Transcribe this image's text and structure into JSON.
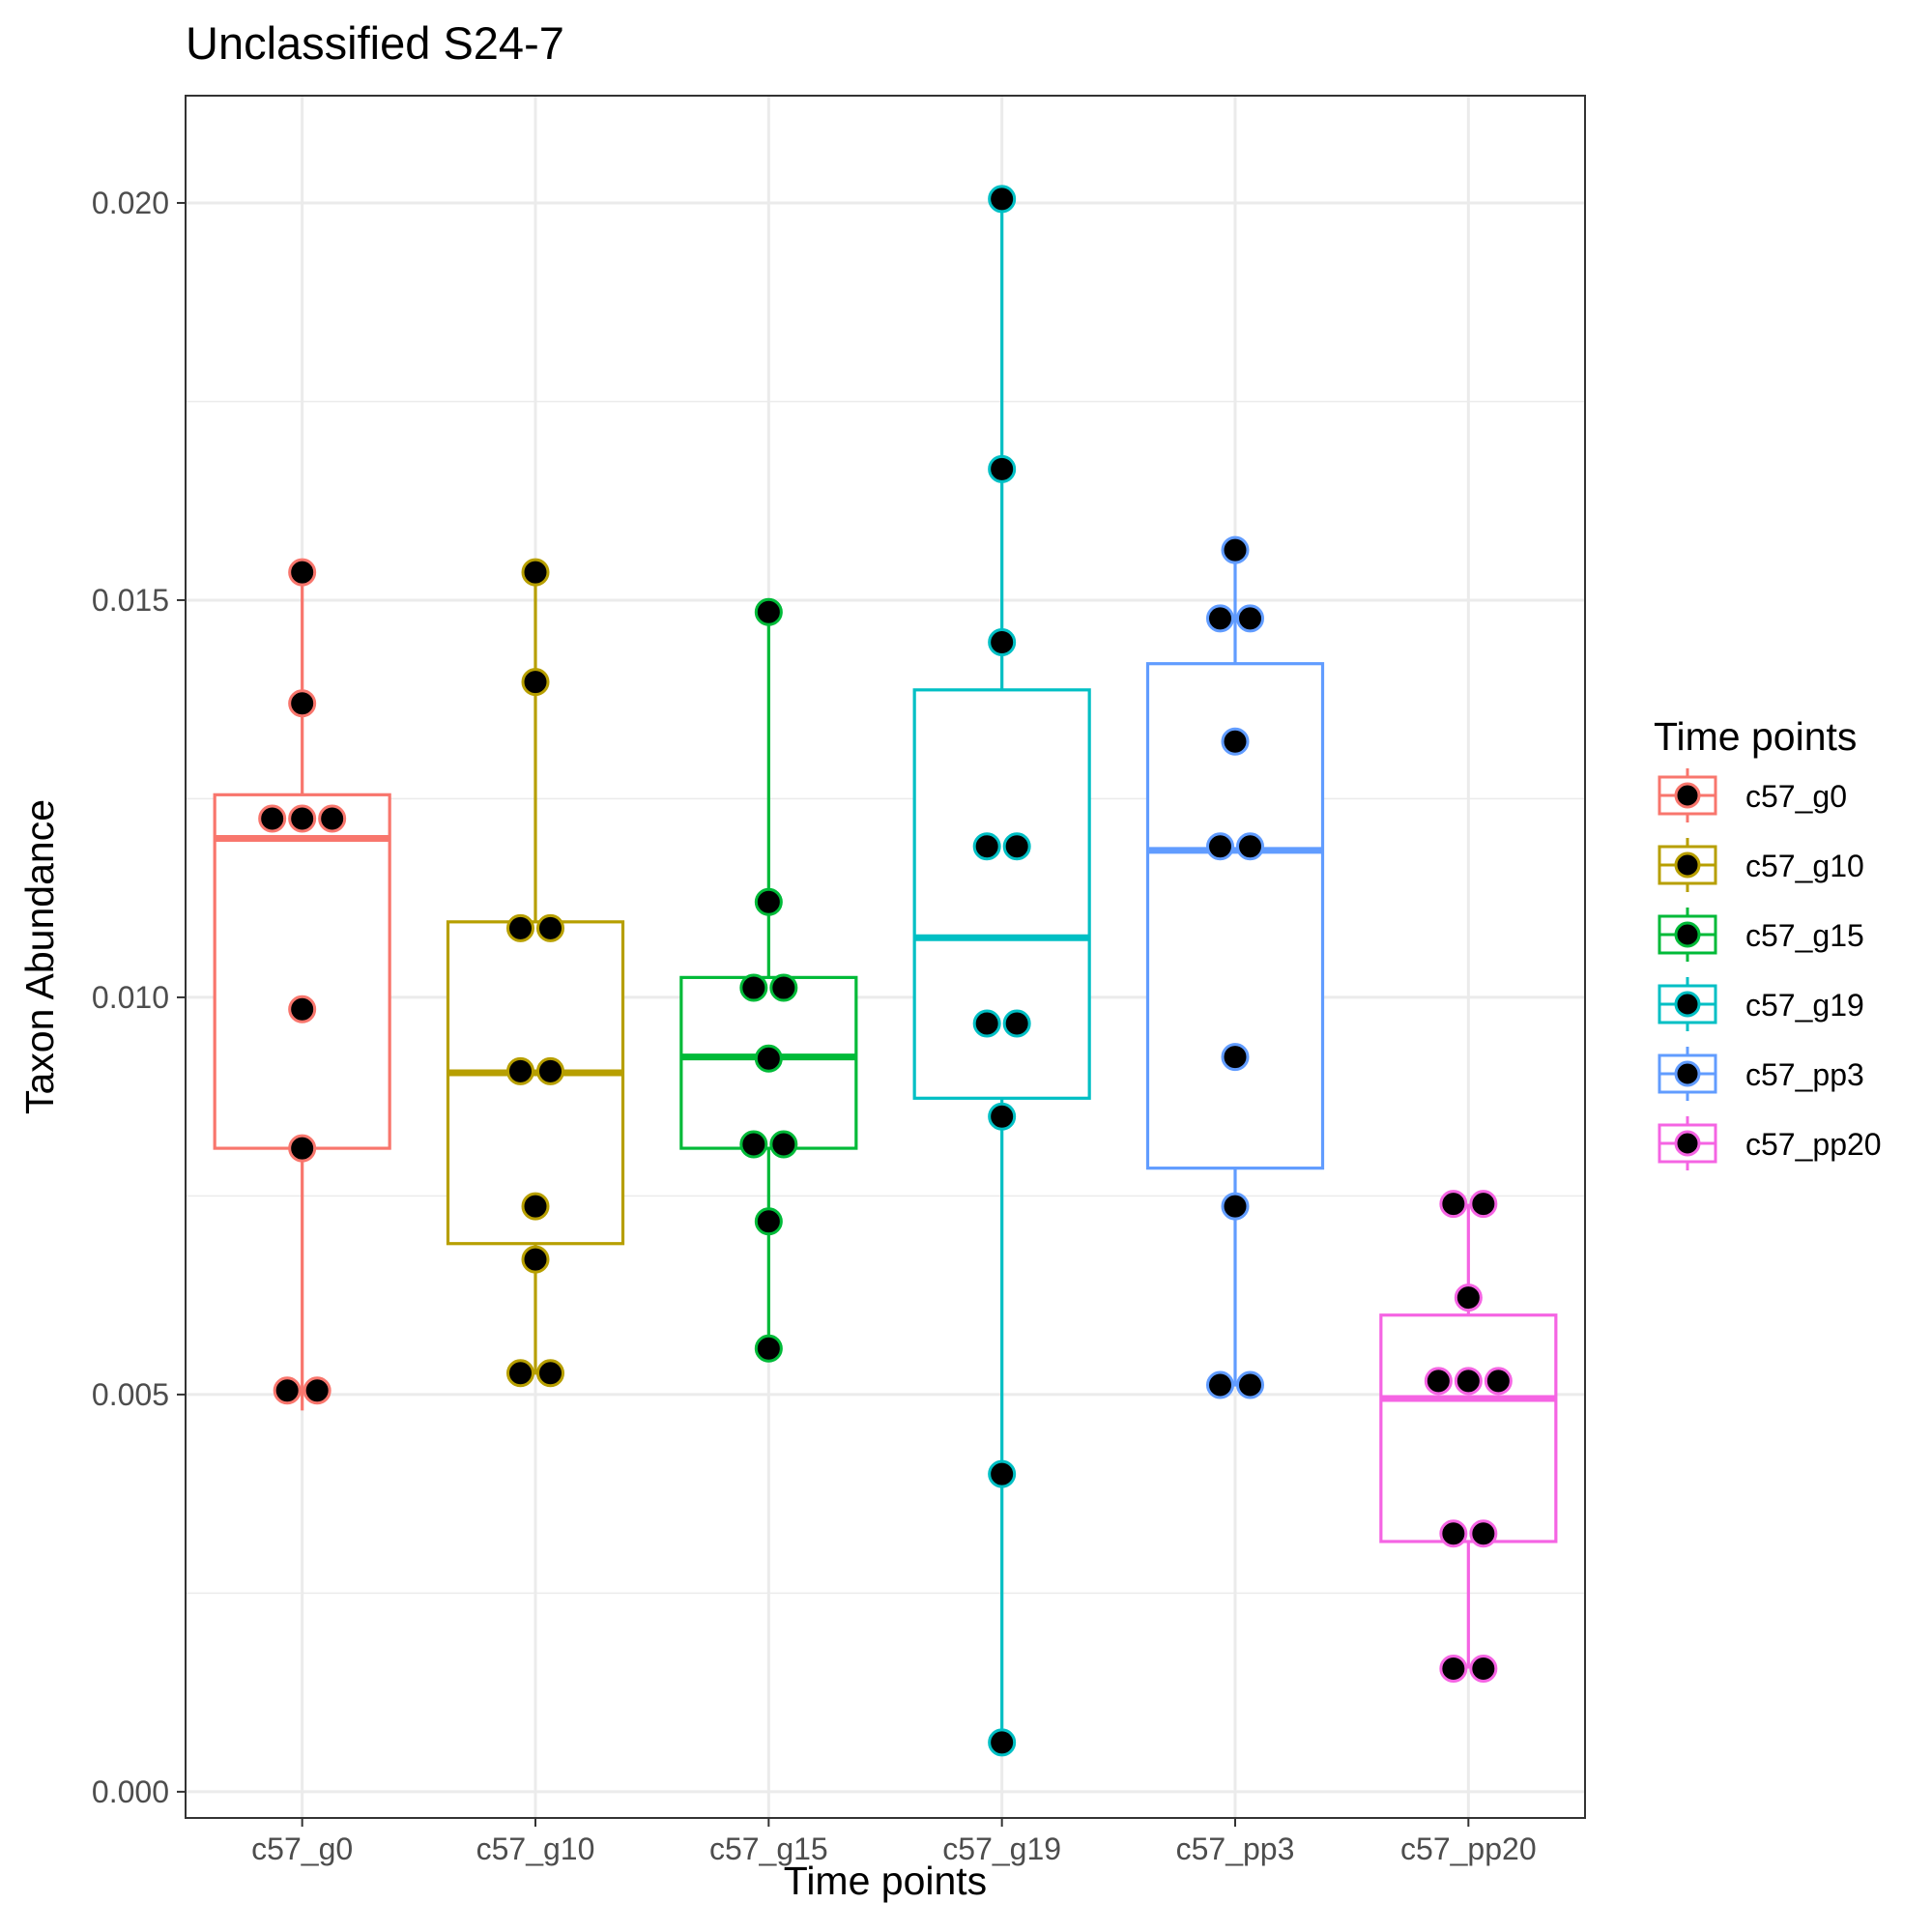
{
  "chart_data": {
    "type": "box",
    "title": "Unclassified S24-7",
    "xlabel": "Time points",
    "ylabel": "Taxon Abundance",
    "categories": [
      "c57_g0",
      "c57_g10",
      "c57_g15",
      "c57_g19",
      "c57_pp3",
      "c57_pp20"
    ],
    "ylim": [
      -0.00033,
      0.02135
    ],
    "y_ticks": [
      "0.000",
      "0.005",
      "0.010",
      "0.015",
      "0.020"
    ],
    "y_tick_values": [
      0,
      0.005,
      0.01,
      0.015,
      0.02
    ],
    "y_minor_values": [
      0.0025,
      0.0075,
      0.0125,
      0.0175
    ],
    "grid": true,
    "legend": {
      "title": "Time points",
      "position": "right"
    },
    "series": [
      {
        "name": "c57_g0",
        "color": "#F8766D",
        "box": {
          "whisker_low": 0.0048,
          "q1": 0.0081,
          "median": 0.012,
          "q3": 0.01255,
          "whisker_high": 0.01535
        },
        "points": [
          {
            "offset": 0,
            "y": 0.01535
          },
          {
            "offset": 0,
            "y": 0.0137
          },
          {
            "offset": -1,
            "y": 0.01225
          },
          {
            "offset": 0,
            "y": 0.01225
          },
          {
            "offset": 1,
            "y": 0.01225
          },
          {
            "offset": 0,
            "y": 0.00985
          },
          {
            "offset": 0,
            "y": 0.0081
          },
          {
            "offset": -0.5,
            "y": 0.00505
          },
          {
            "offset": 0.5,
            "y": 0.00505
          }
        ]
      },
      {
        "name": "c57_g10",
        "color": "#B79F00",
        "box": {
          "whisker_low": 0.00525,
          "q1": 0.0069,
          "median": 0.00905,
          "q3": 0.01095,
          "whisker_high": 0.01535
        },
        "points": [
          {
            "offset": 0,
            "y": 0.01535
          },
          {
            "offset": 0,
            "y": 0.01397
          },
          {
            "offset": -0.5,
            "y": 0.01087
          },
          {
            "offset": 0.5,
            "y": 0.01087
          },
          {
            "offset": -0.5,
            "y": 0.00907
          },
          {
            "offset": 0.5,
            "y": 0.00907
          },
          {
            "offset": 0,
            "y": 0.00737
          },
          {
            "offset": 0,
            "y": 0.0067
          },
          {
            "offset": -0.5,
            "y": 0.00527
          },
          {
            "offset": 0.5,
            "y": 0.00527
          }
        ]
      },
      {
        "name": "c57_g15",
        "color": "#00BA38",
        "box": {
          "whisker_low": 0.00555,
          "q1": 0.0081,
          "median": 0.00925,
          "q3": 0.01025,
          "whisker_high": 0.01485
        },
        "points": [
          {
            "offset": 0,
            "y": 0.01485
          },
          {
            "offset": 0,
            "y": 0.0112
          },
          {
            "offset": -0.5,
            "y": 0.01012
          },
          {
            "offset": 0.5,
            "y": 0.01012
          },
          {
            "offset": 0,
            "y": 0.00923
          },
          {
            "offset": -0.5,
            "y": 0.00815
          },
          {
            "offset": 0.5,
            "y": 0.00815
          },
          {
            "offset": 0,
            "y": 0.00718
          },
          {
            "offset": 0,
            "y": 0.00558
          }
        ]
      },
      {
        "name": "c57_g19",
        "color": "#00BFC4",
        "box": {
          "whisker_low": 0.00065,
          "q1": 0.00873,
          "median": 0.01075,
          "q3": 0.01387,
          "whisker_high": 0.02005
        },
        "points": [
          {
            "offset": 0,
            "y": 0.02005
          },
          {
            "offset": 0,
            "y": 0.01665
          },
          {
            "offset": 0,
            "y": 0.01447
          },
          {
            "offset": -0.5,
            "y": 0.0119
          },
          {
            "offset": 0.5,
            "y": 0.0119
          },
          {
            "offset": -0.5,
            "y": 0.00967
          },
          {
            "offset": 0.5,
            "y": 0.00967
          },
          {
            "offset": 0,
            "y": 0.0085
          },
          {
            "offset": 0,
            "y": 0.004
          },
          {
            "offset": 0,
            "y": 0.00062
          }
        ]
      },
      {
        "name": "c57_pp3",
        "color": "#619CFF",
        "box": {
          "whisker_low": 0.0051,
          "q1": 0.00785,
          "median": 0.01185,
          "q3": 0.0142,
          "whisker_high": 0.01563
        },
        "points": [
          {
            "offset": 0,
            "y": 0.01563
          },
          {
            "offset": -0.5,
            "y": 0.01477
          },
          {
            "offset": 0.5,
            "y": 0.01477
          },
          {
            "offset": 0,
            "y": 0.01322
          },
          {
            "offset": -0.5,
            "y": 0.0119
          },
          {
            "offset": 0.5,
            "y": 0.0119
          },
          {
            "offset": 0,
            "y": 0.00925
          },
          {
            "offset": 0,
            "y": 0.00737
          },
          {
            "offset": -0.5,
            "y": 0.00512
          },
          {
            "offset": 0.5,
            "y": 0.00512
          }
        ]
      },
      {
        "name": "c57_pp20",
        "color": "#F564E3",
        "box": {
          "whisker_low": 0.00155,
          "q1": 0.00315,
          "median": 0.00495,
          "q3": 0.006,
          "whisker_high": 0.0074
        },
        "points": [
          {
            "offset": -0.5,
            "y": 0.0074
          },
          {
            "offset": 0.5,
            "y": 0.0074
          },
          {
            "offset": 0,
            "y": 0.00622
          },
          {
            "offset": -1,
            "y": 0.00517
          },
          {
            "offset": 0,
            "y": 0.00517
          },
          {
            "offset": 1,
            "y": 0.00517
          },
          {
            "offset": -0.5,
            "y": 0.00325
          },
          {
            "offset": 0.5,
            "y": 0.00325
          },
          {
            "offset": -0.5,
            "y": 0.00155
          },
          {
            "offset": 0.5,
            "y": 0.00155
          }
        ]
      }
    ]
  }
}
